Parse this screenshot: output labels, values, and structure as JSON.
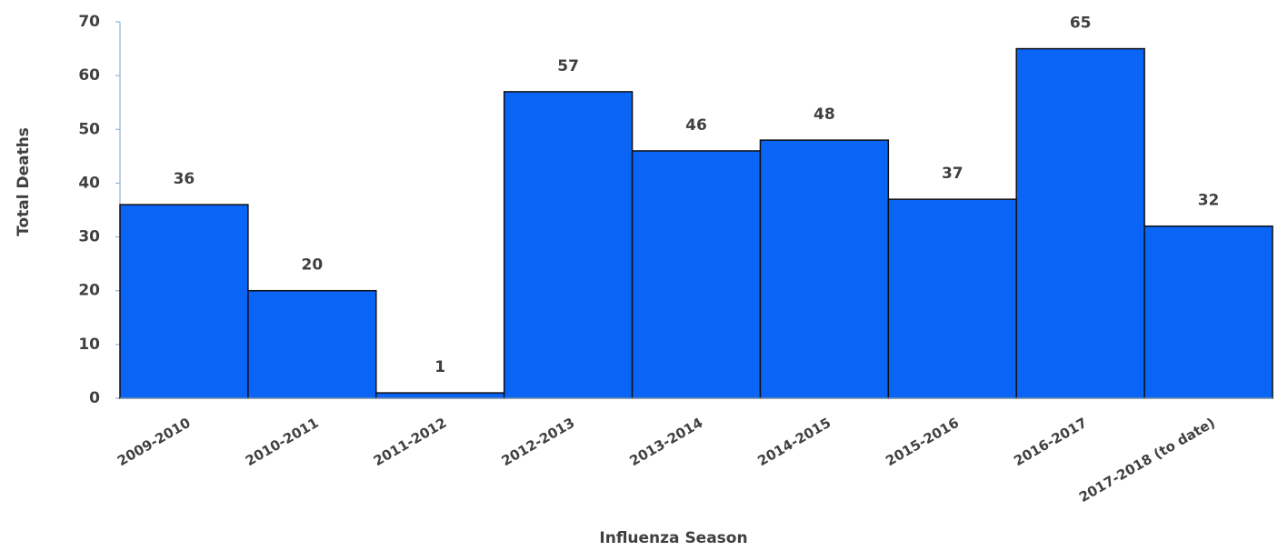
{
  "chart_data": {
    "type": "bar",
    "x_label": "Influenza Season",
    "y_label": "Total Deaths",
    "categories": [
      "2009-2010",
      "2010-2011",
      "2011-2012",
      "2012-2013",
      "2013-2014",
      "2014-2015",
      "2015-2016",
      "2016-2017",
      "2017-2018 (to date)"
    ],
    "values": [
      36,
      20,
      1,
      57,
      46,
      48,
      37,
      65,
      32
    ],
    "color": "#0a64f5",
    "ylim": [
      0,
      70
    ],
    "yticks": [
      0,
      10,
      20,
      30,
      40,
      50,
      60,
      70
    ],
    "grid": false
  }
}
